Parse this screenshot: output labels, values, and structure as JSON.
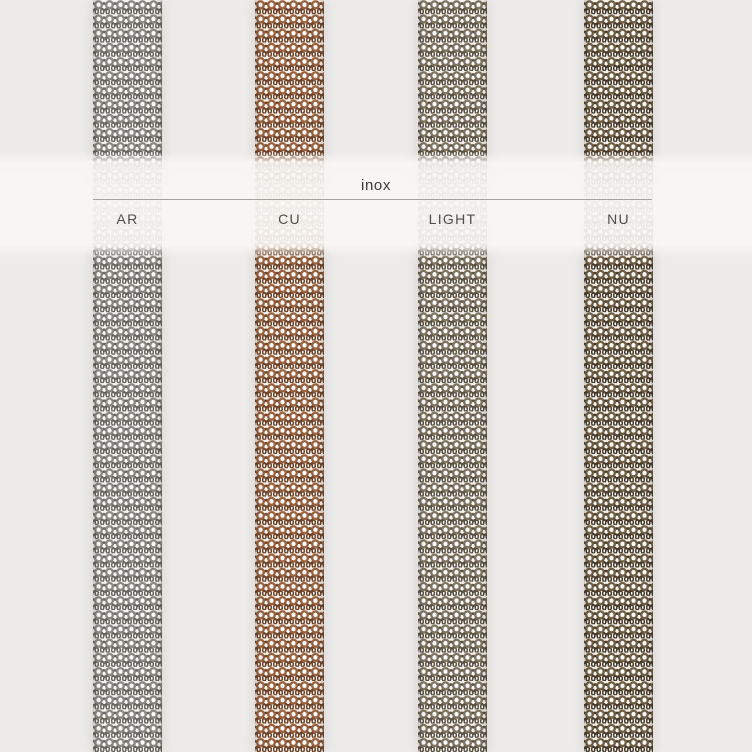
{
  "page": {
    "background": "#edecea"
  },
  "category": {
    "title": "inox"
  },
  "finishes": [
    {
      "code": "AR",
      "metal": "#8a8681",
      "metal_dark": "#696560",
      "base": "#f5f4f2"
    },
    {
      "code": "CU",
      "metal": "#99613e",
      "metal_dark": "#6f4329",
      "base": "#f7f1eb"
    },
    {
      "code": "LIGHT",
      "metal": "#7e7361",
      "metal_dark": "#5a5244",
      "base": "#f5f2ed"
    },
    {
      "code": "NU",
      "metal": "#6f5d42",
      "metal_dark": "#483b2b",
      "base": "#f4f0e9"
    }
  ]
}
